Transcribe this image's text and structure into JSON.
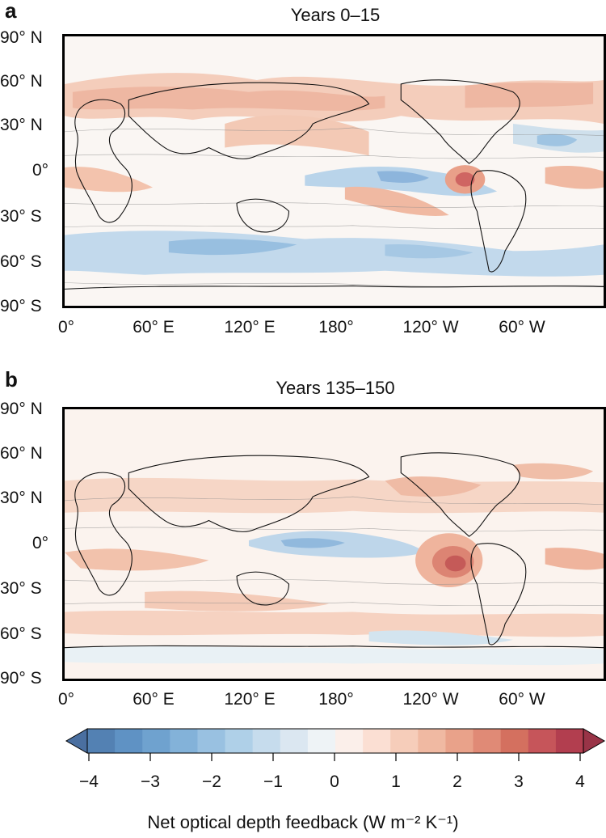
{
  "panels": [
    {
      "letter": "a",
      "title": "Years 0–15",
      "lat_labels": [
        "90° N",
        "60° N",
        "30° N",
        "0°",
        "30° S",
        "60° S",
        "90° S"
      ],
      "lon_labels": [
        "0°",
        "60° E",
        "120° E",
        "180°",
        "120° W",
        "60° W"
      ]
    },
    {
      "letter": "b",
      "title": "Years 135–150",
      "lat_labels": [
        "90° N",
        "60° N",
        "30° N",
        "0°",
        "30° S",
        "60° S",
        "90° S"
      ],
      "lon_labels": [
        "0°",
        "60° E",
        "120° E",
        "180°",
        "120° W",
        "60° W"
      ]
    }
  ],
  "colorbar": {
    "ticks": [
      "−4",
      "−3",
      "−2",
      "−1",
      "0",
      "1",
      "2",
      "3",
      "4"
    ],
    "range": [
      -4,
      4
    ],
    "label": "Net optical depth feedback (W m⁻² K⁻¹)",
    "colors": [
      "#4a6fa0",
      "#5381b3",
      "#5f92c4",
      "#6fa2cf",
      "#83b2d9",
      "#99c1e1",
      "#afd0e8",
      "#c6dced",
      "#dbe7f1",
      "#eef3f6",
      "#fbefea",
      "#fbdfd3",
      "#f6cdba",
      "#f0b9a2",
      "#e9a28a",
      "#e08a76",
      "#d4705f",
      "#c6555a",
      "#b23e4f",
      "#993447"
    ]
  }
}
